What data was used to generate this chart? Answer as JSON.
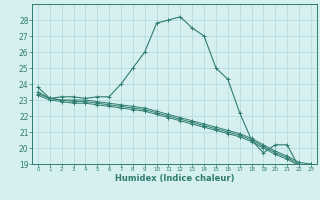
{
  "xlabel": "Humidex (Indice chaleur)",
  "bg_color": "#d6eff0",
  "grid_color": "#b0d8da",
  "line_color": "#2e7d6e",
  "xlim": [
    -0.5,
    23.5
  ],
  "ylim": [
    19,
    29
  ],
  "yticks": [
    19,
    20,
    21,
    22,
    23,
    24,
    25,
    26,
    27,
    28
  ],
  "xticks": [
    0,
    1,
    2,
    3,
    4,
    5,
    6,
    7,
    8,
    9,
    10,
    11,
    12,
    13,
    14,
    15,
    16,
    17,
    18,
    19,
    20,
    21,
    22,
    23
  ],
  "curve1_x": [
    0,
    1,
    2,
    3,
    4,
    5,
    6,
    7,
    8,
    9,
    10,
    11,
    12,
    13,
    14,
    15,
    16,
    17,
    18,
    19,
    20,
    21,
    22,
    23
  ],
  "curve1_y": [
    23.8,
    23.1,
    23.2,
    23.2,
    23.1,
    23.2,
    23.2,
    24.0,
    25.0,
    26.0,
    27.8,
    28.0,
    28.2,
    27.5,
    27.0,
    25.0,
    24.3,
    22.2,
    20.5,
    19.7,
    20.2,
    20.2,
    18.8,
    19.0
  ],
  "line2_x": [
    0,
    1,
    2,
    3,
    4,
    5,
    6,
    7,
    8,
    9,
    10,
    11,
    12,
    13,
    14,
    15,
    16,
    17,
    18,
    19,
    20,
    21,
    22,
    23
  ],
  "line2_y": [
    23.5,
    23.1,
    23.0,
    23.0,
    23.0,
    22.9,
    22.8,
    22.7,
    22.6,
    22.5,
    22.3,
    22.1,
    21.9,
    21.7,
    21.5,
    21.3,
    21.1,
    20.9,
    20.6,
    20.2,
    19.8,
    19.5,
    19.1,
    19.0
  ],
  "line3_x": [
    0,
    1,
    2,
    3,
    4,
    5,
    6,
    7,
    8,
    9,
    10,
    11,
    12,
    13,
    14,
    15,
    16,
    17,
    18,
    19,
    20,
    21,
    22,
    23
  ],
  "line3_y": [
    23.4,
    23.1,
    23.0,
    22.9,
    22.9,
    22.8,
    22.7,
    22.6,
    22.5,
    22.4,
    22.2,
    22.0,
    21.8,
    21.6,
    21.4,
    21.2,
    21.0,
    20.8,
    20.5,
    20.1,
    19.7,
    19.4,
    19.0,
    18.9
  ],
  "line4_x": [
    0,
    1,
    2,
    3,
    4,
    5,
    6,
    7,
    8,
    9,
    10,
    11,
    12,
    13,
    14,
    15,
    16,
    17,
    18,
    19,
    20,
    21,
    22,
    23
  ],
  "line4_y": [
    23.3,
    23.0,
    22.9,
    22.8,
    22.8,
    22.7,
    22.6,
    22.5,
    22.4,
    22.3,
    22.1,
    21.9,
    21.7,
    21.5,
    21.3,
    21.1,
    20.9,
    20.7,
    20.4,
    20.0,
    19.6,
    19.3,
    18.9,
    18.8
  ]
}
